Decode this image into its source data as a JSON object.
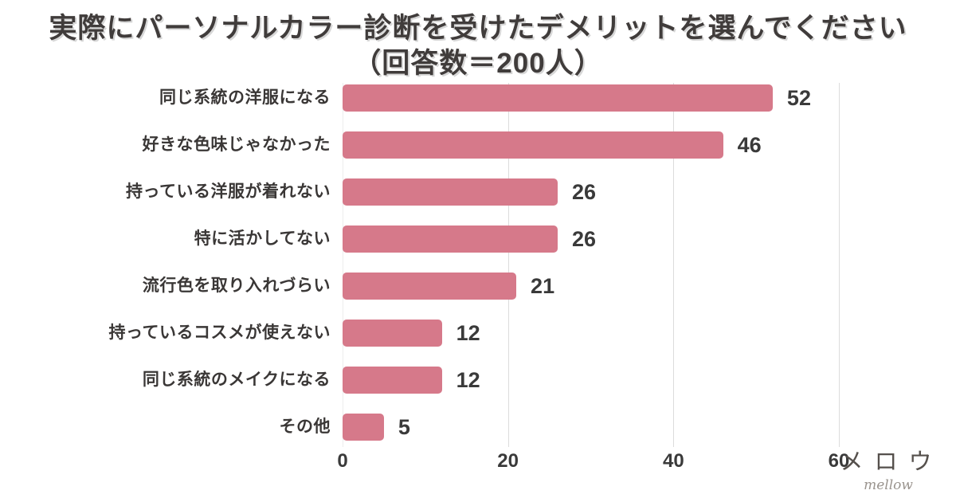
{
  "title": {
    "line1": "実際にパーソナルカラー診断を受けたデメリットを選んでください",
    "line2": "（回答数＝200人）"
  },
  "chart_data": {
    "type": "bar",
    "orientation": "horizontal",
    "title": "実際にパーソナルカラー診断を受けたデメリットを選んでください（回答数＝200人）",
    "respondents": "200人",
    "categories": [
      "同じ系統の洋服になる",
      "好きな色味じゃなかった",
      "持っている洋服が着れない",
      "特に活かしてない",
      "流行色を取り入れづらい",
      "持っているコスメが使えない",
      "同じ系統のメイクになる",
      "その他"
    ],
    "values": [
      52,
      46,
      26,
      26,
      21,
      12,
      12,
      5
    ],
    "xlim": [
      0,
      60
    ],
    "xticks": [
      0,
      20,
      40,
      60
    ],
    "grid": true,
    "legend": false,
    "value_labels": true,
    "bar_color": "#d6798a",
    "grid_color": "#dcdcdc",
    "text_color": "#3a3a3a"
  },
  "brand": {
    "name": "メロウ",
    "script": "mellow"
  }
}
